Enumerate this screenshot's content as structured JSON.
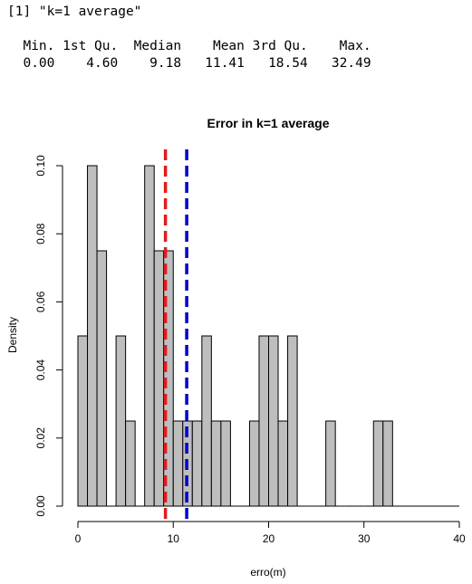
{
  "console": {
    "print_line": "[1] \"k=1 average\"",
    "summary_header": "  Min. 1st Qu.  Median    Mean 3rd Qu.    Max.",
    "summary_values": "  0.00    4.60    9.18   11.41   18.54   32.49"
  },
  "chart_data": {
    "type": "bar",
    "subtype": "histogram",
    "title": "Error in k=1 average",
    "xlabel": "erro(m)",
    "ylabel": "Density",
    "xlim": [
      0,
      40
    ],
    "ylim": [
      0,
      0.1
    ],
    "xticks": [
      0,
      10,
      20,
      30,
      40
    ],
    "xtick_labels": [
      "0",
      "10",
      "20",
      "30",
      "40"
    ],
    "yticks": [
      0,
      0.02,
      0.04,
      0.06,
      0.08,
      0.1
    ],
    "ytick_labels": [
      "0.00",
      "0.02",
      "0.04",
      "0.06",
      "0.08",
      "0.10"
    ],
    "bin_width": 1,
    "bins": [
      {
        "x0": 0,
        "x1": 1,
        "density": 0.05
      },
      {
        "x0": 1,
        "x1": 2,
        "density": 0.1
      },
      {
        "x0": 2,
        "x1": 3,
        "density": 0.075
      },
      {
        "x0": 3,
        "x1": 4,
        "density": 0
      },
      {
        "x0": 4,
        "x1": 5,
        "density": 0.05
      },
      {
        "x0": 5,
        "x1": 6,
        "density": 0.025
      },
      {
        "x0": 6,
        "x1": 7,
        "density": 0
      },
      {
        "x0": 7,
        "x1": 8,
        "density": 0.1
      },
      {
        "x0": 8,
        "x1": 9,
        "density": 0.075
      },
      {
        "x0": 9,
        "x1": 10,
        "density": 0.075
      },
      {
        "x0": 10,
        "x1": 11,
        "density": 0.025
      },
      {
        "x0": 11,
        "x1": 12,
        "density": 0.025
      },
      {
        "x0": 12,
        "x1": 13,
        "density": 0.025
      },
      {
        "x0": 13,
        "x1": 14,
        "density": 0.05
      },
      {
        "x0": 14,
        "x1": 15,
        "density": 0.025
      },
      {
        "x0": 15,
        "x1": 16,
        "density": 0.025
      },
      {
        "x0": 16,
        "x1": 17,
        "density": 0
      },
      {
        "x0": 17,
        "x1": 18,
        "density": 0
      },
      {
        "x0": 18,
        "x1": 19,
        "density": 0.025
      },
      {
        "x0": 19,
        "x1": 20,
        "density": 0.05
      },
      {
        "x0": 20,
        "x1": 21,
        "density": 0.05
      },
      {
        "x0": 21,
        "x1": 22,
        "density": 0.025
      },
      {
        "x0": 22,
        "x1": 23,
        "density": 0.05
      },
      {
        "x0": 23,
        "x1": 24,
        "density": 0
      },
      {
        "x0": 24,
        "x1": 25,
        "density": 0
      },
      {
        "x0": 25,
        "x1": 26,
        "density": 0
      },
      {
        "x0": 26,
        "x1": 27,
        "density": 0.025
      },
      {
        "x0": 27,
        "x1": 28,
        "density": 0
      },
      {
        "x0": 28,
        "x1": 29,
        "density": 0
      },
      {
        "x0": 29,
        "x1": 30,
        "density": 0
      },
      {
        "x0": 30,
        "x1": 31,
        "density": 0
      },
      {
        "x0": 31,
        "x1": 32,
        "density": 0.025
      },
      {
        "x0": 32,
        "x1": 33,
        "density": 0.025
      }
    ],
    "vlines": [
      {
        "x": 9.18,
        "color": "#e31a1c",
        "style": "dashed"
      },
      {
        "x": 11.41,
        "color": "#0000cd",
        "style": "dashed"
      }
    ],
    "bar_fill": "#bebebe",
    "bar_stroke": "#000000",
    "grid": false
  }
}
